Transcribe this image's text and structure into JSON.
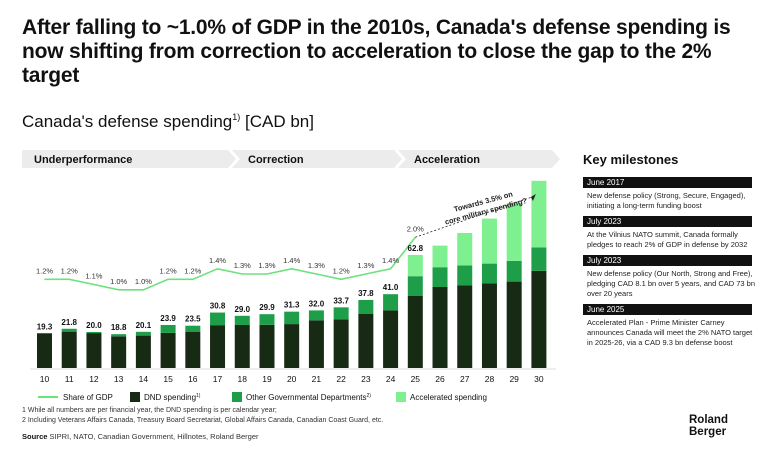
{
  "headline": "After falling to ~1.0% of GDP in the 2010s, Canada's defense spending is now shifting from correction to acceleration to close the gap to the 2% target",
  "subtitle": "Canada's defense spending",
  "subtitle_sup": "1)",
  "subtitle_unit": "[CAD bn]",
  "phases": [
    "Underperformance",
    "Correction",
    "Acceleration"
  ],
  "annotation_callout": [
    "Towards 3.5% on",
    "core military spending?"
  ],
  "milestones": {
    "title": "Key milestones",
    "items": [
      {
        "date": "June 2017",
        "text": "New defense policy (Strong, Secure, Engaged), initiating a long-term funding boost"
      },
      {
        "date": "July 2023",
        "text": "At the Vilnius NATO summit, Canada formally pledges to reach 2% of GDP in defense by 2032"
      },
      {
        "date": "July 2023",
        "text": "New defense policy (Our North, Strong and Free), pledging CAD 8.1 bn over 5 years, and CAD 73 bn over 20 years"
      },
      {
        "date": "June 2025",
        "text": "Accelerated Plan - Prime Minister Carney announces Canada will meet the 2% NATO target in 2025-26, via a CAD 9.3 bn defense boost"
      }
    ]
  },
  "footnotes": [
    "1 While all numbers are per financial year, the DND spending is per calendar year;",
    "2 Including Veterans Affairs Canada, Treasury Board Secretariat, Global Affairs Canada, Canadian Coast Guard, etc."
  ],
  "source_label": "Source",
  "source_text": "SIPRI, NATO, Canadian Government, Hillnotes, Roland Berger",
  "logo_line1": "Roland",
  "logo_line2": "Berger",
  "colors": {
    "dnd": "#172b14",
    "ogd": "#1f9e4a",
    "accelerated": "#7ef08f",
    "gdp_line": "#6be27c",
    "phase_band": "#ececec"
  },
  "chart_data": {
    "type": "bar",
    "categories": [
      "10",
      "11",
      "12",
      "13",
      "14",
      "15",
      "16",
      "17",
      "18",
      "19",
      "20",
      "21",
      "22",
      "23",
      "24",
      "25",
      "26",
      "27",
      "28",
      "29",
      "30"
    ],
    "ylim": [
      0,
      100
    ],
    "legend": [
      "Share of GDP",
      "DND spending",
      "Other Governmental Departments",
      "Accelerated spending"
    ],
    "legend_sup": [
      "",
      "1)",
      "2)",
      ""
    ],
    "series": [
      {
        "name": "DND spending",
        "values": [
          19.3,
          20.2,
          19.4,
          17.6,
          18.0,
          19.5,
          20.0,
          23.8,
          23.9,
          24.0,
          24.4,
          26.5,
          27.0,
          30.0,
          32.0,
          40.0,
          45.0,
          46.0,
          47.0,
          48.0,
          54.0
        ]
      },
      {
        "name": "Other Governmental Departments",
        "values": [
          0,
          1.6,
          0.6,
          1.2,
          2.1,
          4.4,
          3.5,
          7.0,
          5.1,
          5.9,
          6.9,
          5.5,
          6.7,
          7.8,
          9.0,
          11.0,
          11.0,
          11.0,
          11.0,
          11.5,
          13.0
        ]
      },
      {
        "name": "Accelerated spending",
        "values": [
          0,
          0,
          0,
          0,
          0,
          0,
          0,
          0,
          0,
          0,
          0,
          0,
          0,
          0,
          0,
          11.8,
          12.0,
          18.0,
          25.0,
          32.0,
          37.0
        ]
      }
    ],
    "bar_labels": [
      "19.3",
      "21.8",
      "20.0",
      "18.8",
      "20.1",
      "23.9",
      "23.5",
      "30.8",
      "29.0",
      "29.9",
      "31.3",
      "32.0",
      "33.7",
      "37.8",
      "41.0",
      "62.8",
      "",
      "",
      "",
      "",
      ""
    ],
    "gdp_share_labels": [
      "1.2%",
      "1.2%",
      "1.1%",
      "1.0%",
      "1.0%",
      "1.2%",
      "1.2%",
      "1.4%",
      "1.3%",
      "1.3%",
      "1.4%",
      "1.3%",
      "1.2%",
      "1.3%",
      "1.4%",
      "2.0%",
      "",
      "",
      "",
      "",
      ""
    ],
    "gdp_share_values": [
      1.2,
      1.2,
      1.1,
      1.0,
      1.0,
      1.2,
      1.2,
      1.4,
      1.3,
      1.3,
      1.4,
      1.3,
      1.2,
      1.3,
      1.4,
      2.0
    ],
    "gdp_scale": [
      0.9,
      2.1
    ]
  }
}
